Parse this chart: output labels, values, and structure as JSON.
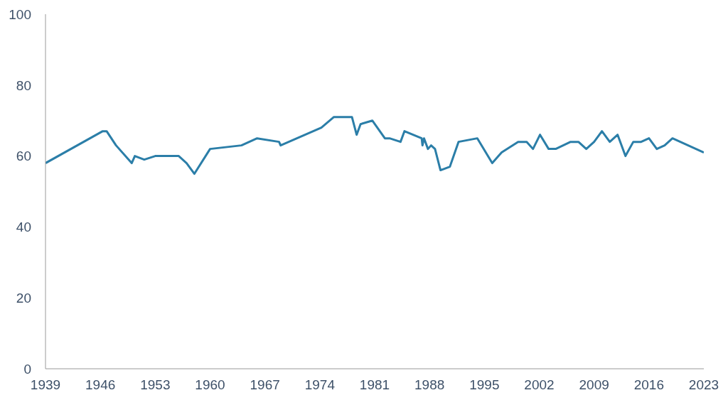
{
  "chart_data": {
    "type": "line",
    "x": [
      1939,
      1946.3,
      1946.8,
      1948,
      1950,
      1950.4,
      1951.6,
      1953,
      1956,
      1957,
      1958,
      1960,
      1964,
      1966,
      1968.8,
      1969,
      1974.2,
      1975.8,
      1978.1,
      1978.7,
      1979.2,
      1980.7,
      1982.3,
      1982.9,
      1984.3,
      1984.8,
      1987,
      1987.1,
      1987.3,
      1987.8,
      1988.2,
      1988.7,
      1989.4,
      1990.6,
      1991.7,
      1994.1,
      1996,
      1997.2,
      1999.3,
      2000.4,
      2001.2,
      2002.1,
      2003.2,
      2004.1,
      2006,
      2007,
      2008,
      2009,
      2010,
      2011,
      2012,
      2013,
      2014,
      2015,
      2016,
      2017,
      2018,
      2019,
      2023
    ],
    "series": [
      {
        "color": "#2b7ea8",
        "values": [
          58,
          67,
          67,
          63,
          58,
          60,
          59,
          60,
          60,
          58,
          55,
          62,
          63,
          65,
          64,
          63,
          68,
          71,
          71,
          66,
          69,
          70,
          65,
          65,
          64,
          67,
          65,
          63,
          65,
          62,
          63,
          62,
          56,
          57,
          64,
          65,
          58,
          61,
          64,
          64,
          62,
          66,
          62,
          62,
          64,
          64,
          62,
          64,
          67,
          64,
          66,
          60,
          64,
          64,
          65,
          62,
          63,
          65,
          61
        ]
      }
    ],
    "xlim": [
      1939,
      2023
    ],
    "xticks": [
      1939,
      1946,
      1953,
      1960,
      1967,
      1974,
      1981,
      1988,
      1995,
      2002,
      2009,
      2016,
      2023
    ],
    "ylim": [
      0,
      100
    ],
    "yticks": [
      0,
      20,
      40,
      60,
      80,
      100
    ],
    "grid": false,
    "legend": false,
    "marker": "none",
    "line_style": "solid"
  }
}
